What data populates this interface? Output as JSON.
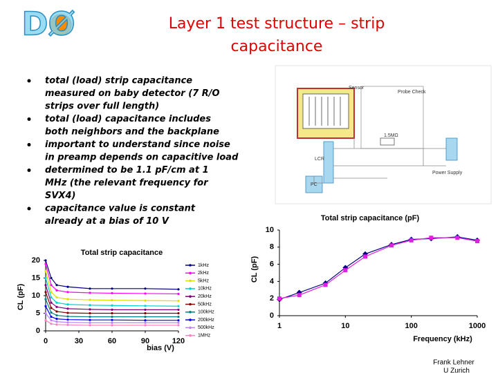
{
  "header": {
    "logo": "DØ",
    "title_lines": [
      "Layer 1 test structure – strip",
      "capacitance"
    ]
  },
  "bullets": [
    [
      "total (load) strip capacitance",
      "measured on baby detector (7 R/O",
      "strips over full length)"
    ],
    [
      "total (load) capacitance includes",
      "both neighbors and the backplane"
    ],
    [
      "important to understand since noise",
      "in preamp depends on capacitive load"
    ],
    [
      "determined to be 1.1 pF/cm at 1",
      "MHz (the relevant frequency for",
      "SVX4)"
    ],
    [
      "capacitance value is constant",
      "already at a bias of 10 V"
    ]
  ],
  "diagram": {
    "labels": [
      "Sensor",
      "Probe Check",
      "1.5MΩ",
      "Power Supply",
      "LCR",
      "PC"
    ]
  },
  "chart_data": [
    {
      "type": "line",
      "title": "Total strip capacitance",
      "x_label": "bias (V)",
      "y_label": "CL (pF)",
      "x": [
        0,
        5,
        10,
        20,
        40,
        60,
        90,
        120
      ],
      "xlim": [
        0,
        120
      ],
      "xticks": [
        0,
        30,
        60,
        90,
        120
      ],
      "ylim": [
        0,
        20
      ],
      "yticks": [
        0,
        5,
        10,
        15,
        20
      ],
      "legend": "right",
      "series": [
        {
          "name": "1kHz",
          "color": "#000080",
          "values": [
            20,
            15,
            13,
            12.5,
            12,
            12,
            12,
            11.8
          ]
        },
        {
          "name": "2kHz",
          "color": "#ff00ff",
          "values": [
            19,
            13,
            11.5,
            11,
            10.8,
            10.7,
            10.6,
            10.5
          ]
        },
        {
          "name": "5kHz",
          "color": "#e0e000",
          "values": [
            17,
            11,
            9.5,
            9,
            8.8,
            8.7,
            8.6,
            8.5
          ]
        },
        {
          "name": "10kHz",
          "color": "#00d0d0",
          "values": [
            15,
            9.5,
            8,
            7.5,
            7.3,
            7.2,
            7.1,
            7
          ]
        },
        {
          "name": "20kHz",
          "color": "#800080",
          "values": [
            13,
            8,
            6.8,
            6.3,
            6.1,
            6,
            6,
            6
          ]
        },
        {
          "name": "50kHz",
          "color": "#800000",
          "values": [
            11,
            6.5,
            5.5,
            5.1,
            5,
            5,
            5,
            5
          ]
        },
        {
          "name": "100kHz",
          "color": "#008080",
          "values": [
            9,
            5.2,
            4.4,
            4.1,
            4,
            4,
            4,
            4
          ]
        },
        {
          "name": "200kHz",
          "color": "#0000ff",
          "values": [
            7,
            4,
            3.4,
            3.2,
            3.1,
            3.1,
            3,
            3
          ]
        },
        {
          "name": "500kHz",
          "color": "#c080ff",
          "values": [
            5,
            3,
            2.6,
            2.4,
            2.3,
            2.3,
            2.3,
            2.3
          ]
        },
        {
          "name": "1MHz",
          "color": "#ff80c0",
          "values": [
            3,
            2,
            1.8,
            1.7,
            1.6,
            1.6,
            1.6,
            1.6
          ]
        }
      ]
    },
    {
      "type": "line",
      "title": "Total strip capacitance (pF)",
      "x_label": "Frequency (kHz)",
      "y_label": "CL (pF)",
      "x": [
        1,
        2,
        5,
        10,
        20,
        50,
        100,
        200,
        500,
        1000
      ],
      "xlog": true,
      "xlim": [
        1,
        1000
      ],
      "xticks": [
        1,
        10,
        100,
        1000
      ],
      "ylim": [
        0,
        10
      ],
      "yticks": [
        0,
        2,
        4,
        6,
        8,
        10
      ],
      "series": [
        {
          "color": "#000080",
          "marker": "diamond",
          "values": [
            1.9,
            2.7,
            3.8,
            5.6,
            7.2,
            8.3,
            8.9,
            9.0,
            9.2,
            8.8
          ]
        },
        {
          "color": "#e020e0",
          "marker": "square",
          "values": [
            2.0,
            2.4,
            3.6,
            5.3,
            6.9,
            8.2,
            8.8,
            9.1,
            9.1,
            8.7
          ]
        }
      ]
    }
  ],
  "footer": {
    "lines": [
      "Frank Lehner",
      "U Zurich"
    ]
  }
}
